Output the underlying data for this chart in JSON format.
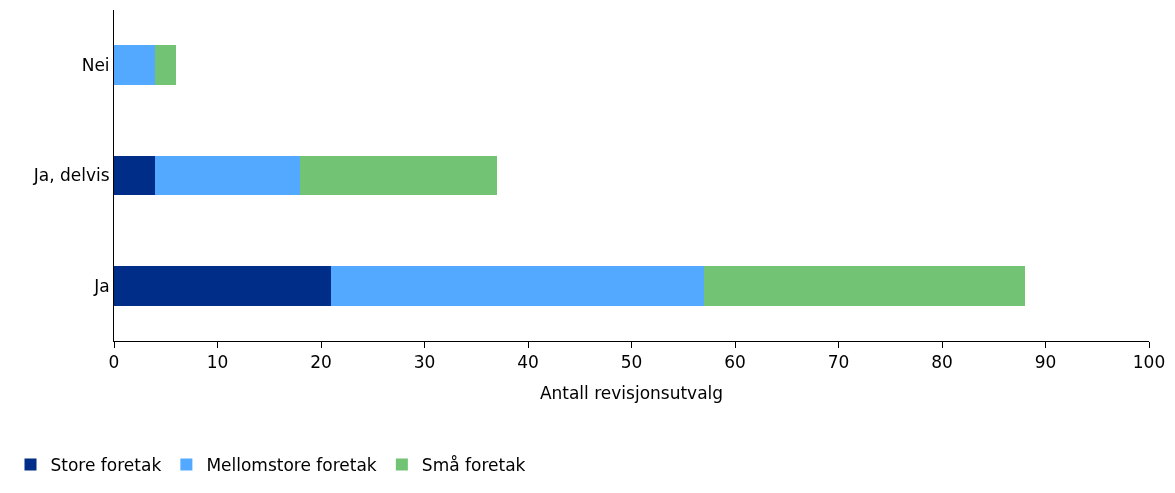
{
  "chart_data": {
    "type": "bar",
    "orientation": "horizontal",
    "stacked": true,
    "categories": [
      "Nei",
      "Ja, delvis",
      "Ja"
    ],
    "series": [
      {
        "name": "Store foretak",
        "color": "#002d87",
        "values": [
          0,
          4,
          21
        ]
      },
      {
        "name": "Mellomstore foretak",
        "color": "#52a9ff",
        "values": [
          4,
          14,
          36
        ]
      },
      {
        "name": "Små foretak",
        "color": "#72c474",
        "values": [
          2,
          19,
          31
        ]
      }
    ],
    "xlabel": "Antall revisjonsutvalg",
    "xlim": [
      0,
      100
    ],
    "xticks": [
      0,
      10,
      20,
      30,
      40,
      50,
      60,
      70,
      80,
      90,
      100
    ],
    "legend": "bottom left"
  }
}
